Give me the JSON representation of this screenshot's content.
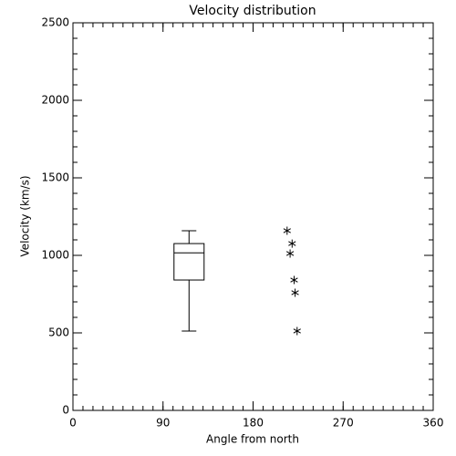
{
  "chart_data": {
    "type": "box",
    "title": "Velocity distribution",
    "x_label": "Angle from north",
    "y_label": "Velocity (km/s)",
    "xlim": [
      0,
      360
    ],
    "xticks": [
      0,
      90,
      180,
      270,
      360
    ],
    "x_minor_step": 10,
    "ylim": [
      0,
      2500
    ],
    "yticks": [
      0,
      500,
      1000,
      1500,
      2000,
      2500
    ],
    "y_minor_step": 100,
    "color": "#000000",
    "boxes": [
      {
        "x": 116,
        "whislo": 512,
        "q1": 841,
        "med": 1016,
        "q3": 1076,
        "whishi": 1159
      }
    ],
    "points": {
      "marker": "asterisk",
      "x": [
        214,
        219,
        217,
        221,
        222,
        224
      ],
      "y": [
        1159,
        1076,
        1012,
        841,
        759,
        512
      ]
    }
  }
}
